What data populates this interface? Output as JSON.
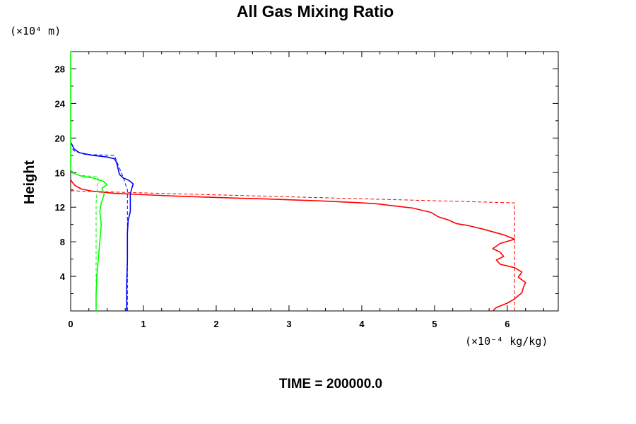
{
  "chart_data": {
    "type": "line",
    "title": "All Gas Mixing Ratio",
    "ylabel": "Height",
    "y_unit_label": "(×10⁴ m)",
    "x_unit_label": "(×10⁻⁴ kg/kg)",
    "footer": "TIME = 200000.0",
    "xlim": [
      0,
      6.7
    ],
    "ylim": [
      0,
      30
    ],
    "x_ticks": [
      "0",
      "1",
      "2",
      "3",
      "4",
      "5",
      "6"
    ],
    "y_ticks": [
      "4",
      "8",
      "12",
      "16",
      "20",
      "24",
      "28"
    ],
    "grid": false,
    "series": [
      {
        "color": "#ff0000",
        "style": "solid",
        "points": [
          [
            5.8,
            0
          ],
          [
            5.85,
            0.4
          ],
          [
            6.0,
            0.9
          ],
          [
            6.1,
            1.4
          ],
          [
            6.2,
            2.1
          ],
          [
            6.22,
            2.7
          ],
          [
            6.25,
            3.3
          ],
          [
            6.15,
            3.9
          ],
          [
            6.2,
            4.5
          ],
          [
            6.1,
            5.0
          ],
          [
            5.9,
            5.4
          ],
          [
            5.85,
            5.9
          ],
          [
            5.95,
            6.3
          ],
          [
            5.9,
            6.8
          ],
          [
            5.8,
            7.2
          ],
          [
            5.9,
            7.8
          ],
          [
            6.1,
            8.3
          ],
          [
            5.95,
            8.8
          ],
          [
            5.65,
            9.5
          ],
          [
            5.45,
            9.9
          ],
          [
            5.3,
            10.1
          ],
          [
            5.2,
            10.5
          ],
          [
            5.05,
            10.9
          ],
          [
            4.95,
            11.4
          ],
          [
            4.85,
            11.6
          ],
          [
            4.7,
            11.9
          ],
          [
            4.4,
            12.2
          ],
          [
            4.2,
            12.4
          ],
          [
            4.0,
            12.5
          ],
          [
            3.5,
            12.7
          ],
          [
            3.2,
            12.8
          ],
          [
            2.7,
            12.95
          ],
          [
            2.3,
            13.05
          ],
          [
            1.9,
            13.15
          ],
          [
            1.4,
            13.3
          ],
          [
            1.0,
            13.45
          ],
          [
            0.6,
            13.6
          ],
          [
            0.3,
            13.85
          ],
          [
            0.15,
            14.1
          ],
          [
            0.06,
            14.5
          ],
          [
            0.02,
            14.9
          ],
          [
            0.0,
            15.2
          ]
        ]
      },
      {
        "color": "#ff0000",
        "style": "dashed",
        "points": [
          [
            6.1,
            0
          ],
          [
            6.1,
            12.5
          ],
          [
            0.8,
            13.7
          ],
          [
            0.0,
            13.9
          ]
        ]
      },
      {
        "color": "#0000ff",
        "style": "solid",
        "points": [
          [
            0.77,
            0
          ],
          [
            0.77,
            3
          ],
          [
            0.78,
            6
          ],
          [
            0.78,
            9
          ],
          [
            0.79,
            10.5
          ],
          [
            0.82,
            11.5
          ],
          [
            0.82,
            13.5
          ],
          [
            0.84,
            14.2
          ],
          [
            0.86,
            14.7
          ],
          [
            0.8,
            15.1
          ],
          [
            0.72,
            15.4
          ],
          [
            0.67,
            15.8
          ],
          [
            0.65,
            16.5
          ],
          [
            0.63,
            17.2
          ],
          [
            0.6,
            17.6
          ],
          [
            0.5,
            17.8
          ],
          [
            0.3,
            18.0
          ],
          [
            0.12,
            18.3
          ],
          [
            0.05,
            18.7
          ],
          [
            0.02,
            19.2
          ],
          [
            0.0,
            19.5
          ]
        ]
      },
      {
        "color": "#0000ff",
        "style": "dashed",
        "points": [
          [
            0.78,
            0
          ],
          [
            0.78,
            14.0
          ],
          [
            0.72,
            15.5
          ],
          [
            0.6,
            18.0
          ],
          [
            0.2,
            18.1
          ],
          [
            0.05,
            18.5
          ],
          [
            0.0,
            19.0
          ]
        ]
      },
      {
        "color": "#00ff00",
        "style": "solid",
        "points": [
          [
            0.35,
            0
          ],
          [
            0.35,
            2
          ],
          [
            0.36,
            4
          ],
          [
            0.38,
            6
          ],
          [
            0.4,
            8
          ],
          [
            0.42,
            10
          ],
          [
            0.4,
            11.5
          ],
          [
            0.42,
            12.5
          ],
          [
            0.46,
            13.5
          ],
          [
            0.43,
            14.2
          ],
          [
            0.5,
            14.6
          ],
          [
            0.45,
            15.0
          ],
          [
            0.3,
            15.4
          ],
          [
            0.15,
            15.6
          ],
          [
            0.05,
            15.9
          ],
          [
            0.0,
            16.3
          ],
          [
            0.0,
            30
          ]
        ]
      },
      {
        "color": "#00ff00",
        "style": "dashed",
        "points": [
          [
            0.35,
            0
          ],
          [
            0.35,
            12.5
          ],
          [
            0.38,
            15.5
          ],
          [
            0.12,
            15.7
          ],
          [
            0.0,
            16.0
          ]
        ]
      }
    ]
  }
}
